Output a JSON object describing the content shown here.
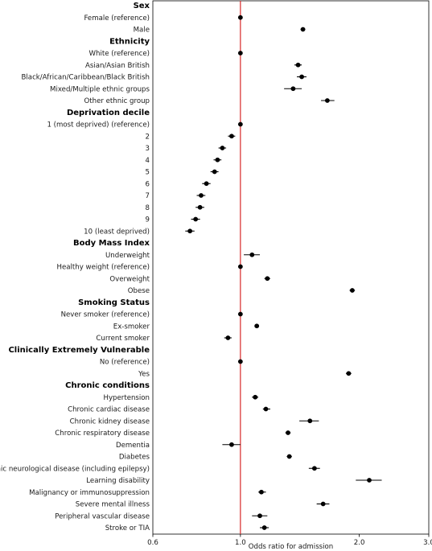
{
  "chart_data": {
    "type": "scatter",
    "subtype": "forest-plot",
    "xlabel": "Odds ratio for admission",
    "x_scale": "log",
    "xlim": [
      0.6,
      3.0
    ],
    "x_ticks": [
      0.6,
      1.0,
      2.0,
      3.0
    ],
    "x_tick_labels": [
      "0.6",
      "1.0",
      "2.0",
      "3.0"
    ],
    "reference_line": {
      "x": 1.0,
      "color": "#d62728"
    },
    "point_color": "#000000",
    "rows": [
      {
        "type": "header",
        "label": "Sex"
      },
      {
        "type": "item",
        "label": "Female (reference)",
        "or": 1.0,
        "lo": 1.0,
        "hi": 1.0
      },
      {
        "type": "item",
        "label": "Male",
        "or": 1.44,
        "lo": 1.42,
        "hi": 1.46
      },
      {
        "type": "header",
        "label": "Ethnicity"
      },
      {
        "type": "item",
        "label": "White (reference)",
        "or": 1.0,
        "lo": 1.0,
        "hi": 1.0
      },
      {
        "type": "item",
        "label": "Asian/Asian British",
        "or": 1.4,
        "lo": 1.37,
        "hi": 1.43
      },
      {
        "type": "item",
        "label": "Black/African/Caribbean/Black British",
        "or": 1.43,
        "lo": 1.39,
        "hi": 1.47
      },
      {
        "type": "item",
        "label": "Mixed/Multiple ethnic groups",
        "or": 1.36,
        "lo": 1.29,
        "hi": 1.43
      },
      {
        "type": "item",
        "label": "Other ethnic group",
        "or": 1.66,
        "lo": 1.6,
        "hi": 1.73
      },
      {
        "type": "header",
        "label": "Deprivation decile"
      },
      {
        "type": "item",
        "label": "1 (most deprived) (reference)",
        "or": 1.0,
        "lo": 1.0,
        "hi": 1.0
      },
      {
        "type": "item",
        "label": "2",
        "or": 0.95,
        "lo": 0.93,
        "hi": 0.97
      },
      {
        "type": "item",
        "label": "3",
        "or": 0.9,
        "lo": 0.88,
        "hi": 0.92
      },
      {
        "type": "item",
        "label": "4",
        "or": 0.875,
        "lo": 0.855,
        "hi": 0.895
      },
      {
        "type": "item",
        "label": "5",
        "or": 0.86,
        "lo": 0.84,
        "hi": 0.88
      },
      {
        "type": "item",
        "label": "6",
        "or": 0.82,
        "lo": 0.8,
        "hi": 0.84
      },
      {
        "type": "item",
        "label": "7",
        "or": 0.795,
        "lo": 0.775,
        "hi": 0.815
      },
      {
        "type": "item",
        "label": "8",
        "or": 0.79,
        "lo": 0.77,
        "hi": 0.81
      },
      {
        "type": "item",
        "label": "9",
        "or": 0.77,
        "lo": 0.75,
        "hi": 0.79
      },
      {
        "type": "item",
        "label": "10 (least deprived)",
        "or": 0.745,
        "lo": 0.725,
        "hi": 0.765
      },
      {
        "type": "header",
        "label": "Body Mass Index"
      },
      {
        "type": "item",
        "label": "Underweight",
        "or": 1.07,
        "lo": 1.02,
        "hi": 1.12
      },
      {
        "type": "item",
        "label": "Healthy weight (reference)",
        "or": 1.0,
        "lo": 1.0,
        "hi": 1.0
      },
      {
        "type": "item",
        "label": "Overweight",
        "or": 1.17,
        "lo": 1.15,
        "hi": 1.19
      },
      {
        "type": "item",
        "label": "Obese",
        "or": 1.92,
        "lo": 1.89,
        "hi": 1.95
      },
      {
        "type": "header",
        "label": "Smoking Status"
      },
      {
        "type": "item",
        "label": "Never smoker (reference)",
        "or": 1.0,
        "lo": 1.0,
        "hi": 1.0
      },
      {
        "type": "item",
        "label": "Ex-smoker",
        "or": 1.1,
        "lo": 1.09,
        "hi": 1.11
      },
      {
        "type": "item",
        "label": "Current smoker",
        "or": 0.93,
        "lo": 0.91,
        "hi": 0.95
      },
      {
        "type": "header",
        "label": "Clinically Extremely Vulnerable"
      },
      {
        "type": "item",
        "label": "No (reference)",
        "or": 1.0,
        "lo": 1.0,
        "hi": 1.0
      },
      {
        "type": "item",
        "label": "Yes",
        "or": 1.88,
        "lo": 1.85,
        "hi": 1.91
      },
      {
        "type": "header",
        "label": "Chronic conditions"
      },
      {
        "type": "item",
        "label": "Hypertension",
        "or": 1.09,
        "lo": 1.07,
        "hi": 1.11
      },
      {
        "type": "item",
        "label": "Chronic cardiac disease",
        "or": 1.16,
        "lo": 1.14,
        "hi": 1.19
      },
      {
        "type": "item",
        "label": "Chronic kidney disease",
        "or": 1.5,
        "lo": 1.41,
        "hi": 1.58
      },
      {
        "type": "item",
        "label": "Chronic respiratory disease",
        "or": 1.32,
        "lo": 1.3,
        "hi": 1.34
      },
      {
        "type": "item",
        "label": "Dementia",
        "or": 0.95,
        "lo": 0.9,
        "hi": 1.0
      },
      {
        "type": "item",
        "label": "Diabetes",
        "or": 1.33,
        "lo": 1.31,
        "hi": 1.35
      },
      {
        "type": "item",
        "label": "Chronic neurological disease (including epilepsy)",
        "or": 1.54,
        "lo": 1.49,
        "hi": 1.59
      },
      {
        "type": "item",
        "label": "Learning disability",
        "or": 2.12,
        "lo": 1.96,
        "hi": 2.28
      },
      {
        "type": "item",
        "label": "Malignancy or immunosuppression",
        "or": 1.13,
        "lo": 1.11,
        "hi": 1.16
      },
      {
        "type": "item",
        "label": "Severe mental illness",
        "or": 1.62,
        "lo": 1.56,
        "hi": 1.68
      },
      {
        "type": "item",
        "label": "Peripheral vascular disease",
        "or": 1.12,
        "lo": 1.07,
        "hi": 1.17
      },
      {
        "type": "item",
        "label": "Stroke or TIA",
        "or": 1.15,
        "lo": 1.12,
        "hi": 1.18
      }
    ]
  }
}
